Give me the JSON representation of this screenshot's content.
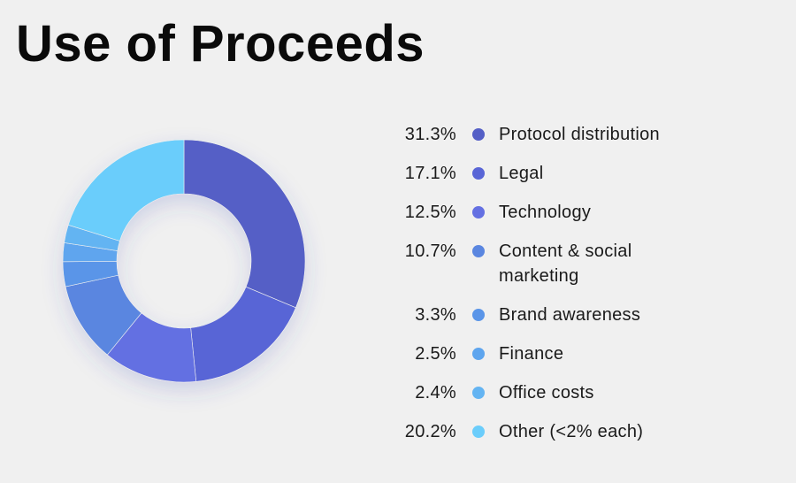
{
  "page": {
    "title": "Use of Proceeds"
  },
  "chart_data": {
    "type": "pie",
    "subtype": "donut",
    "title": "Use of Proceeds",
    "slices": [
      {
        "label": "Protocol distribution",
        "value": 31.3,
        "display": "31.3%",
        "color": "#545fc6"
      },
      {
        "label": "Legal",
        "value": 17.1,
        "display": "17.1%",
        "color": "#5965d6"
      },
      {
        "label": "Technology",
        "value": 12.5,
        "display": "12.5%",
        "color": "#6470e2"
      },
      {
        "label": "Content & social marketing",
        "value": 10.7,
        "display": "10.7%",
        "color": "#5a86e0"
      },
      {
        "label": "Brand awareness",
        "value": 3.3,
        "display": "3.3%",
        "color": "#5a95e8"
      },
      {
        "label": "Finance",
        "value": 2.5,
        "display": "2.5%",
        "color": "#5ea5ee"
      },
      {
        "label": "Office costs",
        "value": 2.4,
        "display": "2.4%",
        "color": "#64b4f2"
      },
      {
        "label": "Other (<2% each)",
        "value": 20.2,
        "display": "20.2%",
        "color": "#6bcdfb"
      }
    ],
    "legend_position": "right"
  }
}
